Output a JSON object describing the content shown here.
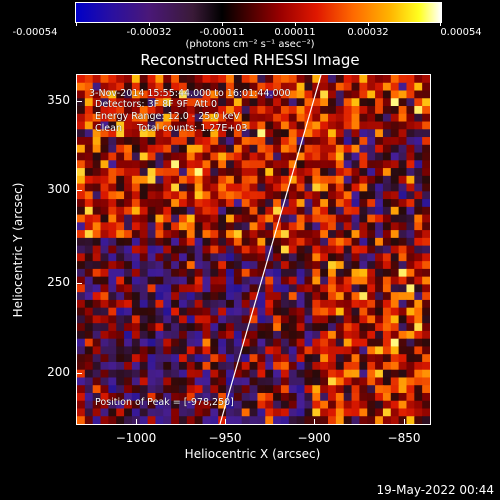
{
  "colorbar": {
    "ticks": [
      "-0.00054",
      "-0.00032",
      "-0.00011",
      "0.00011",
      "0.00032",
      "0.00054"
    ],
    "units": "(photons cm⁻² s⁻¹ asec⁻²)"
  },
  "title": "Reconstructed RHESSI Image",
  "info": {
    "time": "3-Nov-2014 15:55:44.000 to 16:01:44.000",
    "detectors": "Detectors: 3F 8F 9F  Att 0",
    "energy": "Energy Range: 12.0 - 25.0 keV",
    "clean": "Clean     Total counts: 1.27E+03",
    "peak": "Position of Peak = [-978,250]"
  },
  "axes": {
    "xlabel": "Heliocentric X (arcsec)",
    "ylabel": "Heliocentric Y (arcsec)",
    "xticks": [
      "−1000",
      "−950",
      "−900",
      "−850"
    ],
    "yticks": [
      "350",
      "300",
      "250",
      "200"
    ],
    "xlim": [
      -1030,
      -835
    ],
    "ylim": [
      172,
      366
    ]
  },
  "footer": {
    "date": "19-May-2022 00:44"
  },
  "colors": {
    "background": "#000000",
    "text": "#ffffff",
    "limb": "#ffffff"
  }
}
